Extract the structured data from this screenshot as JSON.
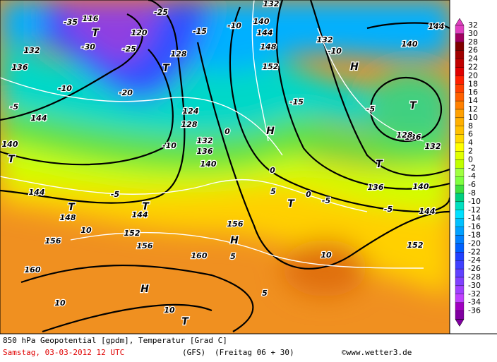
{
  "map": {
    "labels": [
      "144",
      "144",
      "144",
      "144",
      "144",
      "144",
      "140",
      "140",
      "140",
      "140",
      "140",
      "136",
      "136",
      "136",
      "136",
      "132",
      "132",
      "132",
      "132",
      "132",
      "128",
      "128",
      "128",
      "124",
      "120",
      "116",
      "152",
      "152",
      "152",
      "148",
      "148",
      "156",
      "156",
      "156",
      "160",
      "160",
      "T",
      "T",
      "T",
      "T",
      "T",
      "T",
      "T",
      "T",
      "T",
      "H",
      "H",
      "H",
      "H",
      "-10",
      "-10",
      "-10",
      "-10",
      "-5",
      "-5",
      "-5",
      "-5",
      "-5",
      "0",
      "0",
      "0",
      "5",
      "5",
      "5",
      "10",
      "10",
      "10",
      "10",
      "-15",
      "-15",
      "-20",
      "-25",
      "-25",
      "-30",
      "-35"
    ]
  },
  "colorbar": {
    "levels": [
      32,
      30,
      28,
      26,
      24,
      22,
      20,
      18,
      16,
      14,
      12,
      10,
      8,
      6,
      4,
      2,
      0,
      -2,
      -4,
      -6,
      -8,
      -10,
      -12,
      -14,
      -16,
      -18,
      -20,
      -22,
      -24,
      -26,
      -28,
      -30,
      -32,
      -34,
      -36
    ],
    "colors": [
      "#e040c0",
      "#a00060",
      "#800000",
      "#a00000",
      "#c00000",
      "#e00000",
      "#ff2000",
      "#ff4000",
      "#ff6000",
      "#ff8000",
      "#ffa000",
      "#ffb000",
      "#ffc000",
      "#ffd800",
      "#ffff00",
      "#e0ff00",
      "#c0ff00",
      "#a0ff40",
      "#80ff40",
      "#40e040",
      "#00d080",
      "#00e0c0",
      "#00e0ff",
      "#00c0ff",
      "#00a0ff",
      "#0080ff",
      "#0060ff",
      "#2040ff",
      "#4040ff",
      "#6040ff",
      "#8040ff",
      "#a040ff",
      "#c040ff",
      "#a000c0",
      "#8000a0"
    ]
  },
  "footer": {
    "title": "850 hPa Geopotential [gpdm], Temperatur [Grad C]",
    "date": "Samstag, 03-03-2012  12 UTC",
    "model": "(GFS)",
    "run": "(Freitag 06 + 30)",
    "source": "©www.wetter3.de"
  }
}
